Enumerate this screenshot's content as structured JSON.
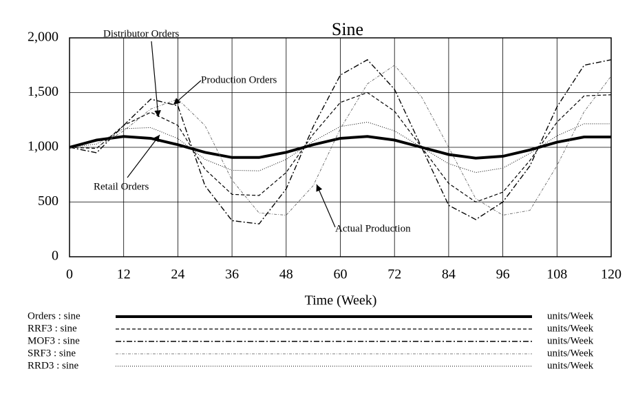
{
  "chart_data": {
    "type": "line",
    "title": "Sine",
    "xlabel": "Time (Week)",
    "units": "units/Week",
    "x": [
      0,
      6,
      12,
      18,
      24,
      30,
      36,
      42,
      48,
      54,
      60,
      66,
      72,
      78,
      84,
      90,
      96,
      102,
      108,
      114,
      120
    ],
    "xlim": [
      0,
      120
    ],
    "xticks": [
      0,
      12,
      24,
      36,
      48,
      60,
      72,
      84,
      96,
      108,
      120
    ],
    "ylim": [
      0,
      2000
    ],
    "yticks": [
      0,
      500,
      {
        "value": 1000,
        "label": "1,000"
      },
      {
        "value": 1500,
        "label": "1,500"
      },
      {
        "value": 2000,
        "label": "2,000"
      }
    ],
    "grid": true,
    "series": [
      {
        "name": "Orders : sine",
        "color": "#000000",
        "width": 4,
        "dash": "none",
        "values": [
          1000,
          1066,
          1099,
          1082,
          1024,
          954,
          907,
          907,
          954,
          1024,
          1082,
          1099,
          1066,
          1000,
          934,
          901,
          918,
          976,
          1047,
          1094,
          1094
        ]
      },
      {
        "name": "RRF3 : sine",
        "color": "#000000",
        "width": 1.2,
        "dash": "5 3",
        "values": [
          1000,
          990,
          1200,
          1320,
          1200,
          800,
          570,
          560,
          770,
          1120,
          1410,
          1500,
          1330,
          1000,
          670,
          500,
          590,
          880,
          1230,
          1470,
          1480
        ]
      },
      {
        "name": "MOF3 : sine",
        "color": "#000000",
        "width": 1.4,
        "dash": "8 3 2 3",
        "values": [
          1000,
          950,
          1200,
          1440,
          1380,
          650,
          330,
          300,
          620,
          1190,
          1660,
          1800,
          1530,
          1000,
          470,
          340,
          500,
          830,
          1370,
          1750,
          1800
        ]
      },
      {
        "name": "SRF3 : sine",
        "color": "#555555",
        "width": 0.8,
        "dash": "4 2 1 2",
        "values": [
          1000,
          1000,
          1150,
          1350,
          1440,
          1200,
          700,
          400,
          380,
          650,
          1170,
          1580,
          1750,
          1460,
          1000,
          530,
          380,
          424,
          833,
          1325,
          1650
        ]
      },
      {
        "name": "RRD3 : sine",
        "color": "#000000",
        "width": 1,
        "dash": "1 2",
        "values": [
          1000,
          1030,
          1170,
          1180,
          1080,
          890,
          790,
          785,
          890,
          1055,
          1190,
          1230,
          1150,
          1000,
          850,
          770,
          810,
          945,
          1105,
          1215,
          1215
        ]
      }
    ],
    "annotations": [
      "Distributor Orders",
      "Production Orders",
      "Retail Orders",
      "Actual Production"
    ]
  }
}
